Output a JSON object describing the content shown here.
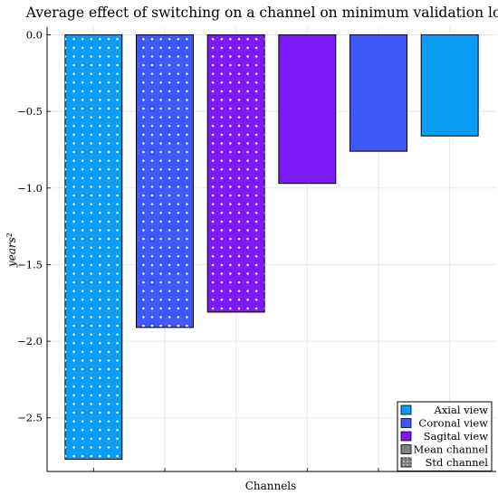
{
  "chart_data": {
    "type": "bar",
    "title": "Average effect of switching on a channel on minimum validation loss",
    "xlabel": "Channels",
    "ylabel": "years²",
    "ylim": [
      -2.85,
      0.05
    ],
    "yticks": [
      0.0,
      -0.5,
      -1.0,
      -1.5,
      -2.0,
      -2.5
    ],
    "ytick_labels": [
      "0.0",
      "−0.5",
      "−1.0",
      "−1.5",
      "−2.0",
      "−2.5"
    ],
    "grid": true,
    "legend_position": "bottom-right",
    "categories": [
      "",
      "",
      "",
      "",
      "",
      ""
    ],
    "bars": [
      {
        "value": -2.77,
        "color": "#0b9cf5",
        "series": "Axial view",
        "pattern": "std"
      },
      {
        "value": -1.91,
        "color": "#4058f8",
        "series": "Coronal view",
        "pattern": "std"
      },
      {
        "value": -1.81,
        "color": "#7c19f7",
        "series": "Sagital view",
        "pattern": "std"
      },
      {
        "value": -0.97,
        "color": "#7c19f7",
        "series": "Sagital view",
        "pattern": "mean"
      },
      {
        "value": -0.76,
        "color": "#4058f8",
        "series": "Coronal view",
        "pattern": "mean"
      },
      {
        "value": -0.66,
        "color": "#0b9cf5",
        "series": "Axial view",
        "pattern": "mean"
      }
    ],
    "legend": [
      {
        "label": "Axial view",
        "color": "#0b9cf5",
        "pattern": "mean"
      },
      {
        "label": "Coronal view",
        "color": "#4058f8",
        "pattern": "mean"
      },
      {
        "label": "Sagital view",
        "color": "#7c19f7",
        "pattern": "mean"
      },
      {
        "label": "Mean channel",
        "color": "#808080",
        "pattern": "mean"
      },
      {
        "label": "Std channel",
        "color": "#808080",
        "pattern": "std"
      }
    ]
  }
}
